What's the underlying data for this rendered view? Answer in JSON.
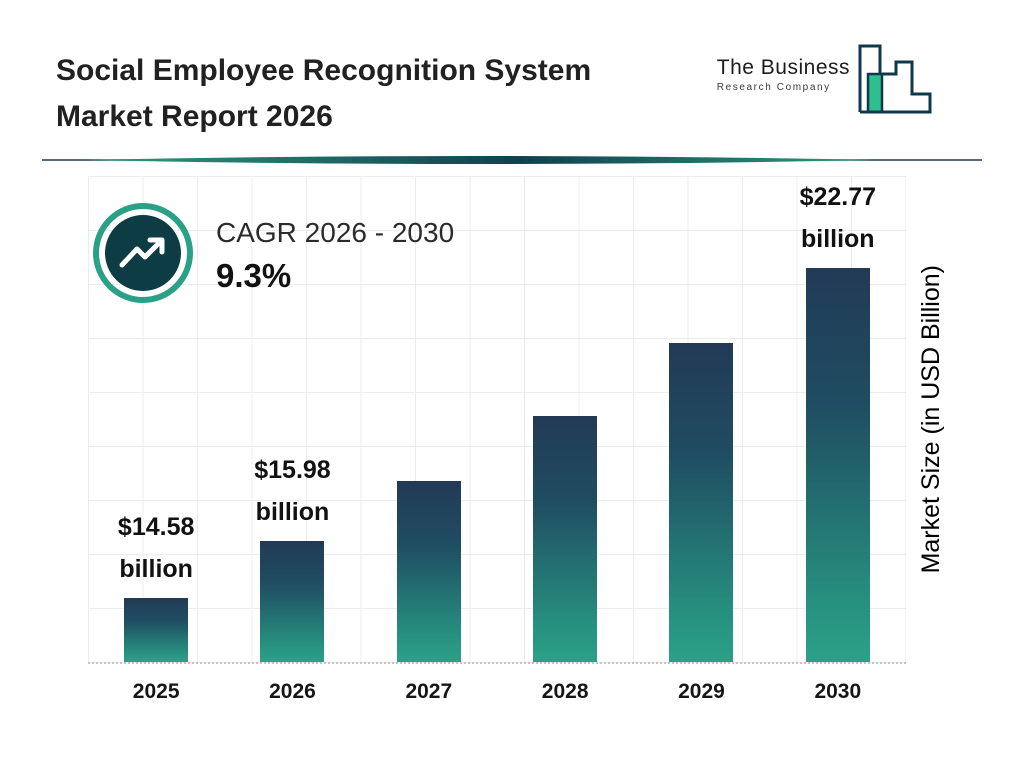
{
  "header": {
    "title_line1": "Social Employee Recognition System",
    "title_line2": "Market Report 2026",
    "logo": {
      "name": "The Business",
      "subname": "Research Company"
    }
  },
  "cagr": {
    "label": "CAGR 2026 - 2030",
    "value": "9.3%"
  },
  "chart_data": {
    "type": "bar",
    "title": "Social Employee Recognition System Market Report 2026",
    "categories": [
      "2025",
      "2026",
      "2027",
      "2028",
      "2029",
      "2030"
    ],
    "values": [
      14.58,
      15.98,
      17.47,
      19.09,
      20.87,
      22.77
    ],
    "unit": "USD Billion",
    "ylabel": "Market Size (in USD Billion)",
    "xlabel": "",
    "ylim": [
      13,
      25
    ],
    "grid": true,
    "legend": "none",
    "cagr_label": "CAGR 2026 - 2030",
    "cagr_value": "9.3%",
    "colors": {
      "bar_top": "#223a56",
      "bar_bottom": "#2ba188",
      "accent_teal": "#2aa187",
      "dark_navy": "#10384a",
      "logo_green": "#2fbf8f"
    },
    "bars": [
      {
        "year": "2025",
        "value": 14.58,
        "label_lines": [
          "$14.58",
          "billion"
        ]
      },
      {
        "year": "2026",
        "value": 15.98,
        "label_lines": [
          "$15.98",
          "billion"
        ]
      },
      {
        "year": "2027",
        "value": 17.47,
        "label_lines": []
      },
      {
        "year": "2028",
        "value": 19.09,
        "label_lines": []
      },
      {
        "year": "2029",
        "value": 20.87,
        "label_lines": []
      },
      {
        "year": "2030",
        "value": 22.77,
        "label_lines": [
          "$22.77",
          "billion"
        ]
      }
    ]
  }
}
